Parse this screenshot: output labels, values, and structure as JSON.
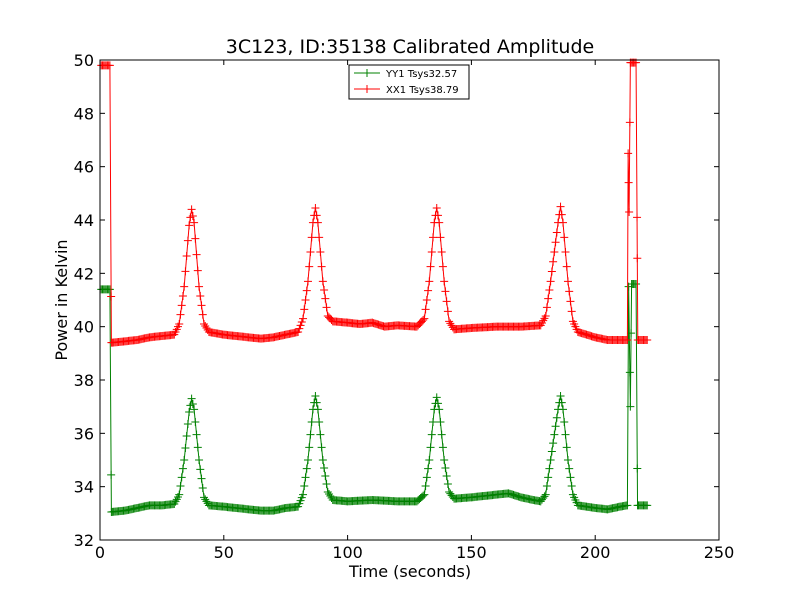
{
  "chart_data": {
    "type": "line",
    "title": "3C123, ID:35138 Calibrated Amplitude",
    "xlabel": "Time (seconds)",
    "ylabel": "Power in Kelvin",
    "xlim": [
      0,
      250
    ],
    "ylim": [
      32,
      50
    ],
    "x_ticks": [
      "0",
      "50",
      "100",
      "150",
      "200",
      "250"
    ],
    "y_ticks": [
      "32",
      "34",
      "36",
      "38",
      "40",
      "42",
      "44",
      "46",
      "48",
      "50"
    ],
    "grid": false,
    "legend_position": "top-center",
    "series": [
      {
        "name": "YY1 Tsys32.57",
        "color": "#008000",
        "marker": "plus",
        "keypoints": [
          [
            0.5,
            41.4
          ],
          [
            4.0,
            41.4
          ],
          [
            4.6,
            33.05
          ],
          [
            10,
            33.1
          ],
          [
            15,
            33.2
          ],
          [
            20,
            33.3
          ],
          [
            25,
            33.3
          ],
          [
            30,
            33.35
          ],
          [
            32,
            33.7
          ],
          [
            34,
            35.0
          ],
          [
            36,
            36.8
          ],
          [
            37,
            37.3
          ],
          [
            38,
            36.9
          ],
          [
            40,
            35.0
          ],
          [
            42,
            33.6
          ],
          [
            44,
            33.3
          ],
          [
            50,
            33.25
          ],
          [
            55,
            33.2
          ],
          [
            60,
            33.15
          ],
          [
            65,
            33.1
          ],
          [
            70,
            33.1
          ],
          [
            75,
            33.2
          ],
          [
            80,
            33.25
          ],
          [
            82,
            33.7
          ],
          [
            84,
            35.0
          ],
          [
            86,
            36.9
          ],
          [
            87,
            37.4
          ],
          [
            88,
            36.9
          ],
          [
            90,
            35.0
          ],
          [
            92,
            33.8
          ],
          [
            94,
            33.5
          ],
          [
            100,
            33.45
          ],
          [
            110,
            33.5
          ],
          [
            120,
            33.45
          ],
          [
            128,
            33.45
          ],
          [
            131,
            33.7
          ],
          [
            133,
            35.0
          ],
          [
            135,
            36.9
          ],
          [
            136,
            37.35
          ],
          [
            137,
            36.9
          ],
          [
            139,
            35.0
          ],
          [
            141,
            33.8
          ],
          [
            143,
            33.55
          ],
          [
            150,
            33.6
          ],
          [
            155,
            33.65
          ],
          [
            160,
            33.7
          ],
          [
            165,
            33.75
          ],
          [
            170,
            33.6
          ],
          [
            175,
            33.5
          ],
          [
            178,
            33.45
          ],
          [
            180,
            33.7
          ],
          [
            182,
            35.0
          ],
          [
            185,
            36.9
          ],
          [
            186,
            37.4
          ],
          [
            187,
            36.9
          ],
          [
            189,
            35.0
          ],
          [
            191,
            33.7
          ],
          [
            193,
            33.3
          ],
          [
            200,
            33.2
          ],
          [
            205,
            33.15
          ],
          [
            210,
            33.25
          ],
          [
            213,
            33.3
          ],
          [
            213.5,
            41.5
          ],
          [
            214.2,
            37.0
          ],
          [
            214.7,
            41.6
          ],
          [
            216.5,
            41.6
          ],
          [
            217.1,
            33.3
          ],
          [
            221,
            33.3
          ]
        ]
      },
      {
        "name": "XX1 Tsys38.79",
        "color": "#ff0000",
        "marker": "plus",
        "keypoints": [
          [
            0.5,
            49.8
          ],
          [
            4.0,
            49.8
          ],
          [
            4.6,
            39.4
          ],
          [
            10,
            39.45
          ],
          [
            15,
            39.5
          ],
          [
            20,
            39.6
          ],
          [
            25,
            39.65
          ],
          [
            30,
            39.7
          ],
          [
            32,
            40.1
          ],
          [
            34,
            41.5
          ],
          [
            36,
            43.8
          ],
          [
            37,
            44.4
          ],
          [
            38,
            43.9
          ],
          [
            40,
            41.5
          ],
          [
            42,
            40.1
          ],
          [
            44,
            39.8
          ],
          [
            50,
            39.7
          ],
          [
            55,
            39.65
          ],
          [
            60,
            39.6
          ],
          [
            65,
            39.55
          ],
          [
            70,
            39.6
          ],
          [
            75,
            39.7
          ],
          [
            80,
            39.8
          ],
          [
            82,
            40.3
          ],
          [
            84,
            41.7
          ],
          [
            86,
            43.9
          ],
          [
            87,
            44.45
          ],
          [
            88,
            43.9
          ],
          [
            90,
            41.7
          ],
          [
            92,
            40.4
          ],
          [
            94,
            40.2
          ],
          [
            100,
            40.15
          ],
          [
            105,
            40.1
          ],
          [
            110,
            40.15
          ],
          [
            115,
            40.0
          ],
          [
            120,
            40.05
          ],
          [
            128,
            40.0
          ],
          [
            131,
            40.3
          ],
          [
            133,
            41.7
          ],
          [
            135,
            43.9
          ],
          [
            136,
            44.45
          ],
          [
            137,
            43.9
          ],
          [
            139,
            41.7
          ],
          [
            141,
            40.2
          ],
          [
            143,
            39.9
          ],
          [
            150,
            39.95
          ],
          [
            160,
            40.0
          ],
          [
            170,
            40.0
          ],
          [
            178,
            40.05
          ],
          [
            180,
            40.4
          ],
          [
            182,
            41.7
          ],
          [
            185,
            43.9
          ],
          [
            186,
            44.5
          ],
          [
            187,
            43.9
          ],
          [
            189,
            41.7
          ],
          [
            191,
            40.2
          ],
          [
            193,
            39.8
          ],
          [
            200,
            39.6
          ],
          [
            205,
            39.5
          ],
          [
            210,
            39.5
          ],
          [
            213,
            39.5
          ],
          [
            213.3,
            46.5
          ],
          [
            213.7,
            44.3
          ],
          [
            214.2,
            49.9
          ],
          [
            216.5,
            49.9
          ],
          [
            216.9,
            44.1
          ],
          [
            217.2,
            39.5
          ],
          [
            221,
            39.5
          ]
        ]
      }
    ]
  }
}
